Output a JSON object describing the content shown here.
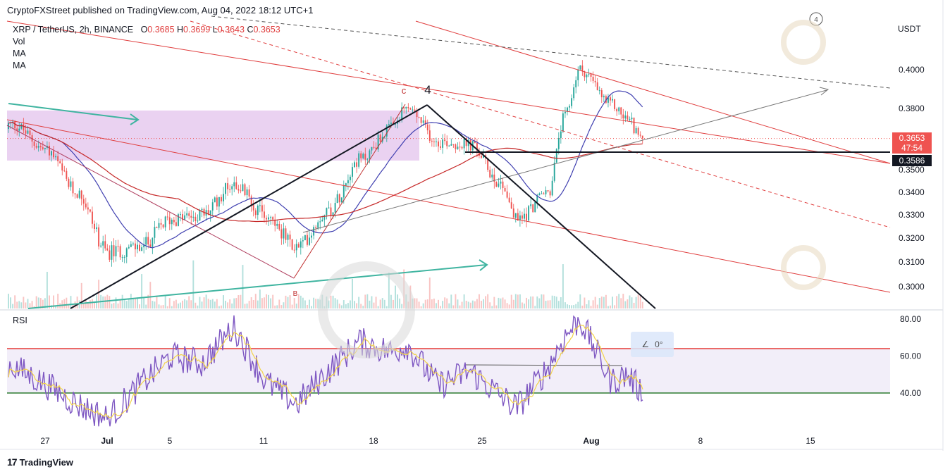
{
  "header": {
    "published": "CryptoFXStreet published on TradingView.com, Aug 04, 2022 18:12 UTC+1"
  },
  "symbol": {
    "name": "XRP / TetherUS, 2h, BINANCE",
    "o_label": "O",
    "o": "0.3685",
    "h_label": "H",
    "h": "0.3699",
    "l_label": "L",
    "l": "0.3643",
    "c_label": "C",
    "c": "0.3653"
  },
  "indicators": [
    "Vol",
    "MA",
    "MA"
  ],
  "rsi_label": "RSI",
  "currency_label": "USDT",
  "price_tags": {
    "last": "0.3653",
    "countdown": "47:54",
    "support": "0.3586"
  },
  "wave_labels": {
    "c": "c",
    "four": "4",
    "b": "B"
  },
  "angle_tool": {
    "value": "0°"
  },
  "branding": {
    "logo_mark": "17",
    "name": "TradingView"
  },
  "colors": {
    "up": "#26a69a",
    "down": "#ef5350",
    "ma_fast": "#3f3fb0",
    "ma_slow": "#c62828",
    "zone": "#e3c3ec",
    "rsi_line": "#7e57c2",
    "rsi_ma": "#f2d34a",
    "rsi_overbought": "#e53935",
    "rsi_oversold": "#2e7d32",
    "last_price_tag": "#ef5350",
    "support_tag": "#131722"
  },
  "chart_data": [
    {
      "type": "candlestick",
      "ylim": [
        0.2935,
        0.4195
      ],
      "y_ticks": [
        0.4,
        0.38,
        0.35,
        0.34,
        0.33,
        0.32,
        0.31,
        0.3
      ],
      "x_ticks": [
        "27",
        "Jul",
        "5",
        "11",
        "18",
        "25",
        "Aug",
        "8",
        "15"
      ],
      "series": [
        {
          "name": "XRP/USDT",
          "x": [
            "Jun 23",
            "Jun 25",
            "Jun 27",
            "Jun 29",
            "Jul 1",
            "Jul 3",
            "Jul 5",
            "Jul 7",
            "Jul 9",
            "Jul 11",
            "Jul 13",
            "Jul 15",
            "Jul 17",
            "Jul 19",
            "Jul 20",
            "Jul 22",
            "Jul 24",
            "Jul 26",
            "Jul 27",
            "Jul 29",
            "Jul 30",
            "Jul 31",
            "Aug 2",
            "Aug 3",
            "Aug 4"
          ],
          "values": [
            0.37,
            0.372,
            0.36,
            0.34,
            0.314,
            0.316,
            0.328,
            0.33,
            0.344,
            0.33,
            0.316,
            0.332,
            0.355,
            0.37,
            0.38,
            0.364,
            0.362,
            0.344,
            0.328,
            0.34,
            0.375,
            0.4,
            0.382,
            0.375,
            0.3653
          ]
        }
      ],
      "levels": [
        {
          "name": "Last price",
          "value": 0.3653
        },
        {
          "name": "Support",
          "value": 0.3586
        }
      ],
      "annotations": [
        "c",
        "4",
        "B"
      ]
    },
    {
      "type": "line",
      "title": "RSI",
      "ylim": [
        20,
        84
      ],
      "y_ticks": [
        80.0,
        60.0,
        40.0
      ],
      "levels": [
        64,
        40
      ],
      "series": [
        {
          "name": "RSI",
          "x": [
            "Jun 23",
            "Jun 25",
            "Jun 27",
            "Jun 29",
            "Jul 1",
            "Jul 3",
            "Jul 5",
            "Jul 7",
            "Jul 9",
            "Jul 11",
            "Jul 13",
            "Jul 15",
            "Jul 17",
            "Jul 19",
            "Jul 20",
            "Jul 22",
            "Jul 24",
            "Jul 26",
            "Jul 27",
            "Jul 29",
            "Jul 30",
            "Jul 31",
            "Aug 2",
            "Aug 3",
            "Aug 4"
          ],
          "values": [
            62,
            54,
            45,
            34,
            26,
            44,
            60,
            56,
            76,
            46,
            34,
            52,
            68,
            62,
            66,
            44,
            52,
            38,
            32,
            54,
            70,
            80,
            46,
            50,
            40
          ]
        }
      ]
    }
  ]
}
